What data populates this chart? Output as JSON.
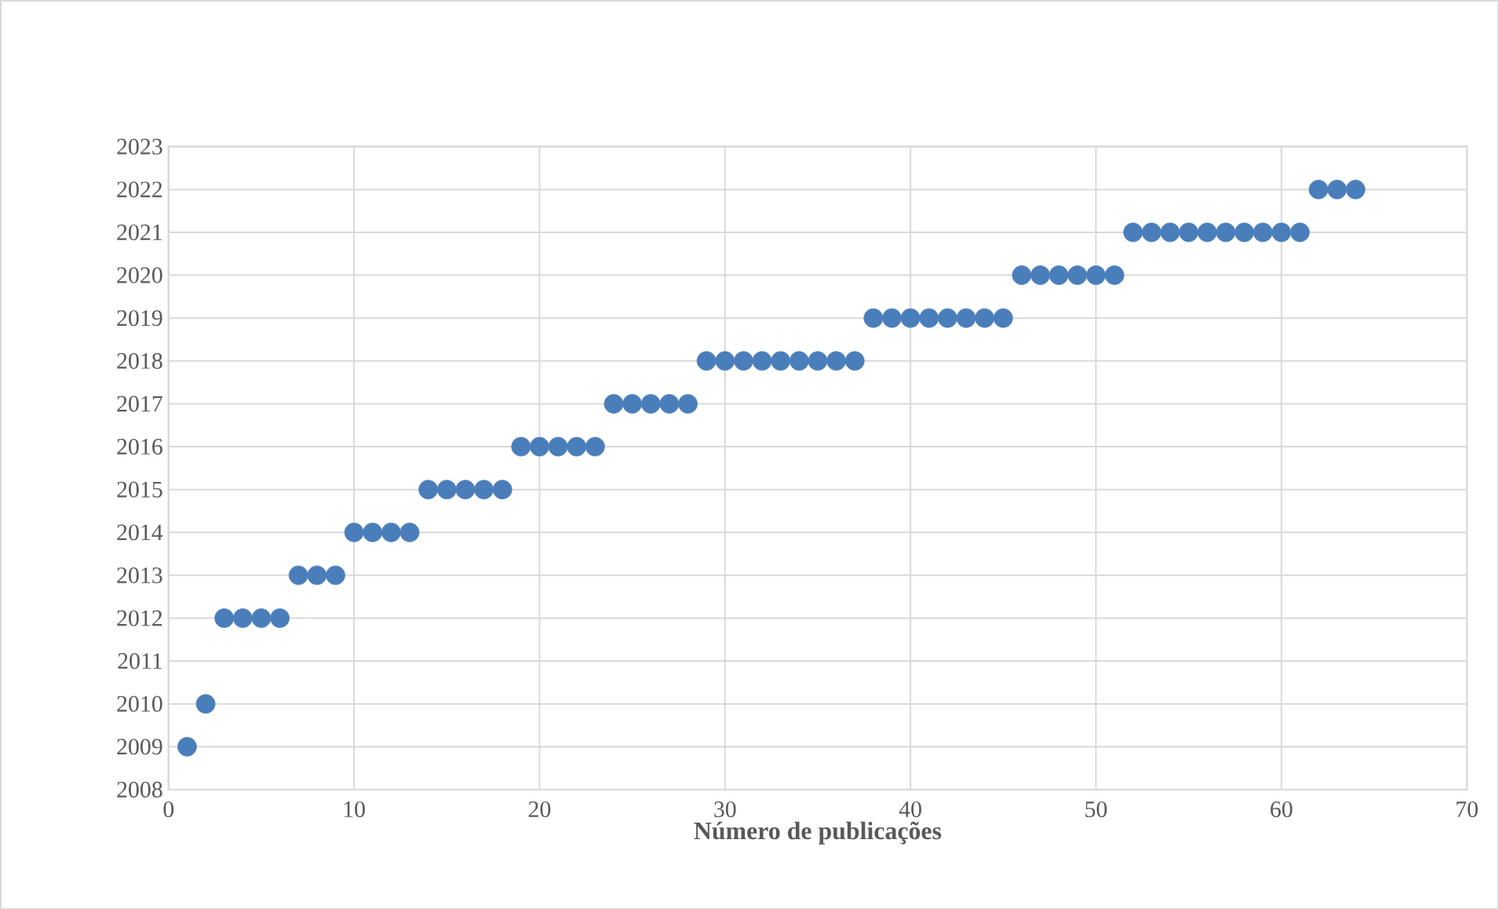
{
  "chart_data": {
    "type": "scatter",
    "xlabel": "Número de publicações",
    "x": [
      1,
      2,
      3,
      4,
      5,
      6,
      7,
      8,
      9,
      10,
      11,
      12,
      13,
      14,
      15,
      16,
      17,
      18,
      19,
      20,
      21,
      22,
      23,
      24,
      25,
      26,
      27,
      28,
      29,
      30,
      31,
      32,
      33,
      34,
      35,
      36,
      37,
      38,
      39,
      40,
      41,
      42,
      43,
      44,
      45,
      46,
      47,
      48,
      49,
      50,
      51,
      52,
      53,
      54,
      55,
      56,
      57,
      58,
      59,
      60,
      61,
      62,
      63,
      64
    ],
    "values": [
      2009,
      2010,
      2012,
      2012,
      2012,
      2012,
      2013,
      2013,
      2013,
      2014,
      2014,
      2014,
      2014,
      2015,
      2015,
      2015,
      2015,
      2015,
      2016,
      2016,
      2016,
      2016,
      2016,
      2017,
      2017,
      2017,
      2017,
      2017,
      2018,
      2018,
      2018,
      2018,
      2018,
      2018,
      2018,
      2018,
      2018,
      2019,
      2019,
      2019,
      2019,
      2019,
      2019,
      2019,
      2019,
      2020,
      2020,
      2020,
      2020,
      2020,
      2020,
      2021,
      2021,
      2021,
      2021,
      2021,
      2021,
      2021,
      2021,
      2021,
      2021,
      2022,
      2022,
      2022
    ],
    "color": "#4a7ebb",
    "grid": true,
    "xlim": [
      0,
      70
    ],
    "xticks": [
      0,
      10,
      20,
      30,
      40,
      50,
      60,
      70
    ],
    "ylim": [
      2008,
      2023
    ],
    "yticks": [
      2008,
      2009,
      2010,
      2011,
      2012,
      2013,
      2014,
      2015,
      2016,
      2017,
      2018,
      2019,
      2020,
      2021,
      2022,
      2023
    ]
  }
}
